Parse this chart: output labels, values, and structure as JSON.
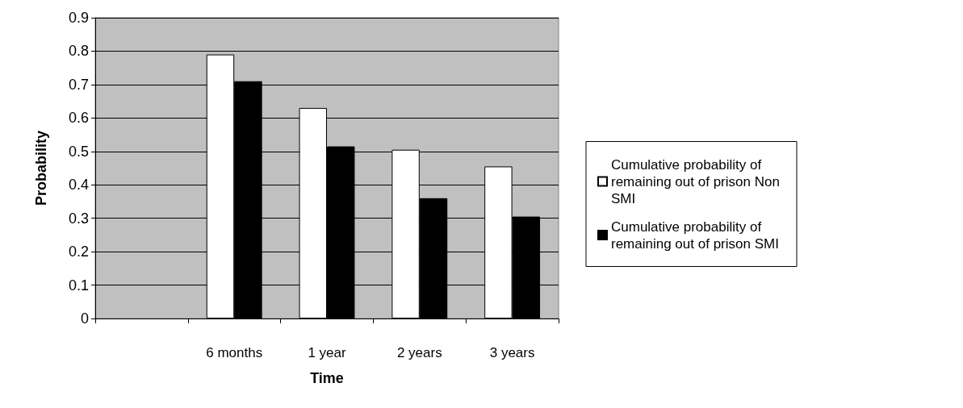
{
  "chart_data": {
    "type": "bar",
    "xlabel": "Time",
    "ylabel": "Probability",
    "categories": [
      null,
      "6 months",
      "1 year",
      "2 years",
      "3 years"
    ],
    "series": [
      {
        "name": "Cumulative probability of remaining out of prison Non SMI",
        "color": "#ffffff",
        "values": [
          null,
          0.79,
          0.63,
          0.505,
          0.455
        ]
      },
      {
        "name": "Cumulative probability of remaining out of prison SMI",
        "color": "#000000",
        "values": [
          null,
          0.71,
          0.515,
          0.36,
          0.305
        ]
      }
    ],
    "ylim": [
      0,
      0.9
    ],
    "yticks": [
      0,
      0.1,
      0.2,
      0.3,
      0.4,
      0.5,
      0.6,
      0.7,
      0.8,
      0.9
    ],
    "grid": "y",
    "legend": "right",
    "marker": "square"
  }
}
